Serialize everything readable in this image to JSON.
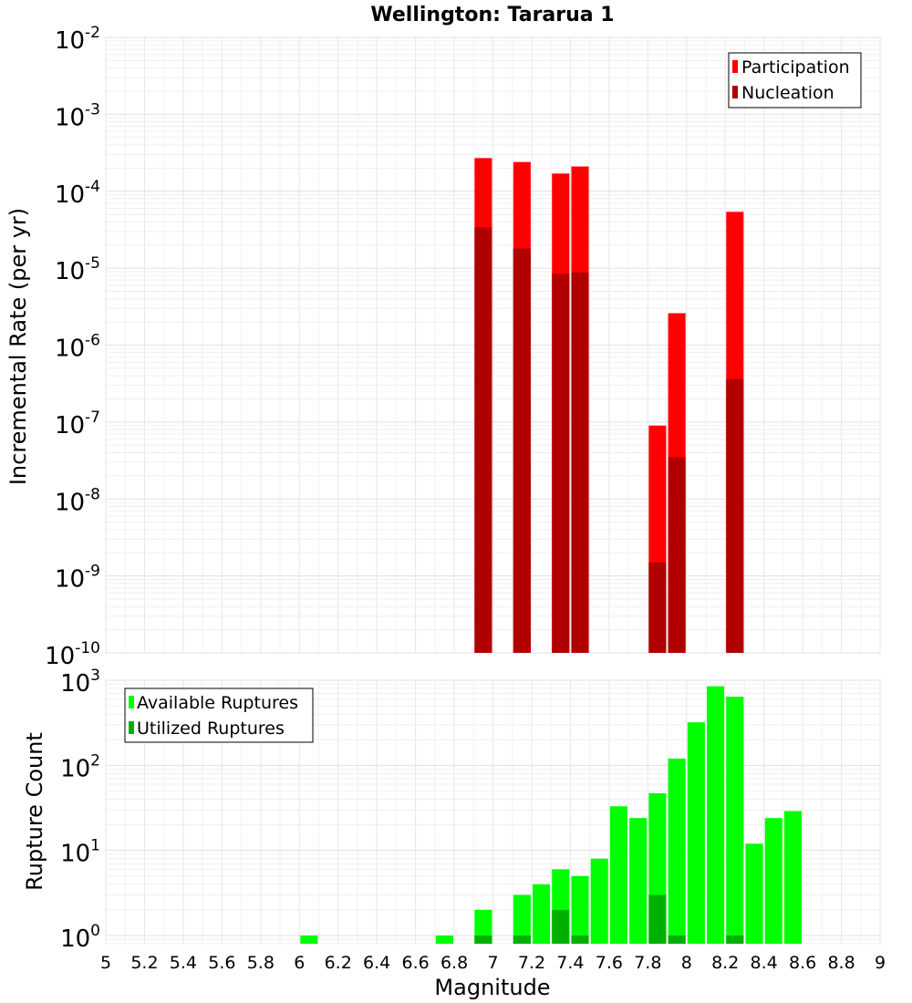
{
  "title": "Wellington: Tararua 1",
  "xlabel": "Magnitude",
  "x_ticks": [
    "5",
    "5.2",
    "5.4",
    "5.6",
    "5.8",
    "6",
    "6.2",
    "6.4",
    "6.6",
    "6.8",
    "7",
    "7.2",
    "7.4",
    "7.6",
    "7.8",
    "8",
    "8.2",
    "8.4",
    "8.6",
    "8.8",
    "9"
  ],
  "colors": {
    "participation": "#ff0000",
    "nucleation": "#b00000",
    "available": "#00ff00",
    "utilized": "#00b000"
  },
  "chart_data": [
    {
      "type": "bar",
      "name": "rate-panel",
      "ylabel": "Incremental Rate (per yr)",
      "ylog": true,
      "xlim": [
        5,
        9
      ],
      "ylim": [
        1e-10,
        0.01
      ],
      "y_ticks": [
        {
          "base": "10",
          "exp": "-10"
        },
        {
          "base": "10",
          "exp": "-9"
        },
        {
          "base": "10",
          "exp": "-8"
        },
        {
          "base": "10",
          "exp": "-7"
        },
        {
          "base": "10",
          "exp": "-6"
        },
        {
          "base": "10",
          "exp": "-5"
        },
        {
          "base": "10",
          "exp": "-4"
        },
        {
          "base": "10",
          "exp": "-3"
        },
        {
          "base": "10",
          "exp": "-2"
        }
      ],
      "legend_position": "top-right",
      "grid": true,
      "x": [
        6.95,
        7.15,
        7.35,
        7.45,
        7.85,
        7.95,
        8.25
      ],
      "series": [
        {
          "name": "Participation",
          "values": [
            0.00027,
            0.00024,
            0.00017,
            0.00021,
            9e-08,
            2.6e-06,
            5.4e-05
          ]
        },
        {
          "name": "Nucleation",
          "values": [
            3.4e-05,
            1.8e-05,
            8.5e-06,
            8.8e-06,
            1.5e-09,
            3.5e-08,
            3.6e-07
          ]
        }
      ]
    },
    {
      "type": "bar",
      "name": "count-panel",
      "ylabel": "Rupture Count",
      "ylog": true,
      "xlim": [
        5,
        9
      ],
      "ylim": [
        0.8,
        1000
      ],
      "y_ticks": [
        {
          "base": "10",
          "exp": "0"
        },
        {
          "base": "10",
          "exp": "1"
        },
        {
          "base": "10",
          "exp": "2"
        },
        {
          "base": "10",
          "exp": "3"
        }
      ],
      "legend_position": "top-left",
      "grid": true,
      "series": [
        {
          "name": "Available Ruptures",
          "x": [
            6.05,
            6.75,
            6.95,
            7.15,
            7.25,
            7.35,
            7.45,
            7.55,
            7.65,
            7.75,
            7.85,
            7.95,
            8.05,
            8.15,
            8.25,
            8.35,
            8.45,
            8.55
          ],
          "values": [
            1,
            1,
            2,
            3,
            4,
            6,
            5,
            8,
            33,
            24,
            47,
            120,
            320,
            850,
            640,
            12,
            24,
            29
          ]
        },
        {
          "name": "Utilized Ruptures",
          "x": [
            6.95,
            7.15,
            7.35,
            7.45,
            7.85,
            7.95,
            8.25
          ],
          "values": [
            1,
            1,
            2,
            1,
            3,
            1,
            1
          ]
        }
      ]
    }
  ]
}
